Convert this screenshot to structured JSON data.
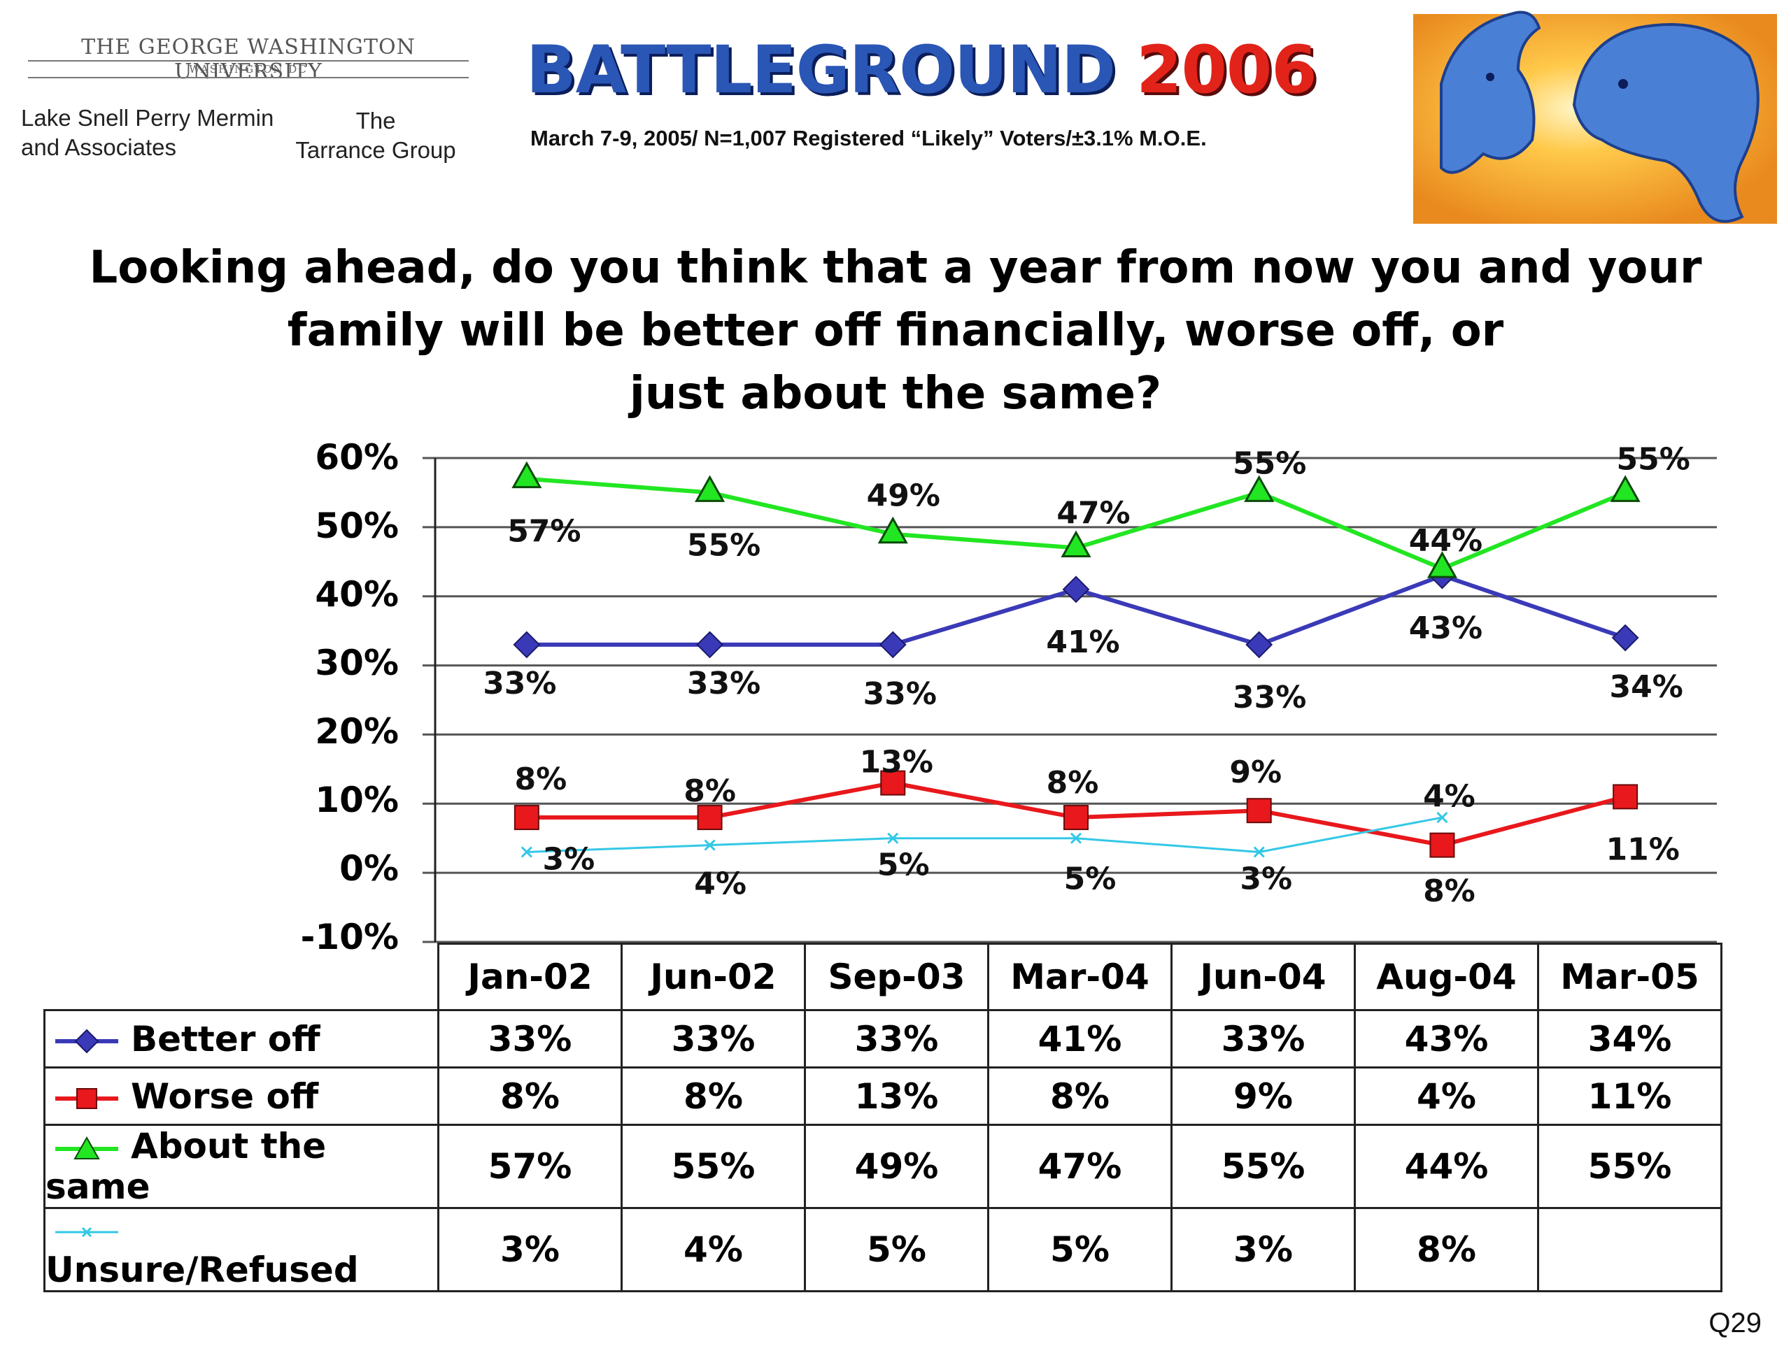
{
  "header": {
    "university": "THE GEORGE WASHINGTON UNIVERSITY",
    "university_sub": "WASHINGTON DC",
    "partner1_line1": "Lake Snell Perry Mermin",
    "partner1_line2": "and Associates",
    "partner2_line1": "The",
    "partner2_line2": "Tarrance Group",
    "brand_word": "BATTLEGROUND",
    "brand_year": "2006",
    "poll_info": "March 7-9, 2005/ N=1,007 Registered “Likely” Voters/±3.1% M.O.E."
  },
  "question": {
    "line1": "Looking ahead, do you think that a year from now you and your",
    "line2": "family will be better off financially, worse off, or",
    "line3": "just about the same?"
  },
  "footer": {
    "code": "Q29"
  },
  "colors": {
    "better": "#3a3ab8",
    "worse": "#e8181c",
    "same": "#22e622",
    "unsure": "#33c8e6",
    "grid": "#555555"
  },
  "chart_data": {
    "type": "line",
    "categories": [
      "Jan-02",
      "Jun-02",
      "Sep-03",
      "Mar-04",
      "Jun-04",
      "Aug-04",
      "Mar-05"
    ],
    "ylim": [
      -10,
      60
    ],
    "yticks": [
      "60%",
      "50%",
      "40%",
      "30%",
      "20%",
      "10%",
      "0%",
      "-10%"
    ],
    "grid": true,
    "series": [
      {
        "name": "Better off",
        "values": [
          33,
          33,
          33,
          41,
          33,
          43,
          34
        ],
        "labels": [
          "33%",
          "33%",
          "33%",
          "41%",
          "33%",
          "43%",
          "34%"
        ],
        "marker": "diamond"
      },
      {
        "name": "Worse off",
        "values": [
          8,
          8,
          13,
          8,
          9,
          4,
          11
        ],
        "labels": [
          "8%",
          "8%",
          "13%",
          "8%",
          "9%",
          "4%",
          "11%"
        ],
        "marker": "square"
      },
      {
        "name": "About the same",
        "values": [
          57,
          55,
          49,
          47,
          55,
          44,
          55
        ],
        "labels": [
          "57%",
          "55%",
          "49%",
          "47%",
          "55%",
          "44%",
          "55%"
        ],
        "marker": "triangle"
      },
      {
        "name": "Unsure/Refused",
        "values": [
          3,
          4,
          5,
          5,
          3,
          8,
          null
        ],
        "labels": [
          "3%",
          "4%",
          "5%",
          "5%",
          "3%",
          "8%",
          ""
        ],
        "marker": "x"
      }
    ]
  }
}
